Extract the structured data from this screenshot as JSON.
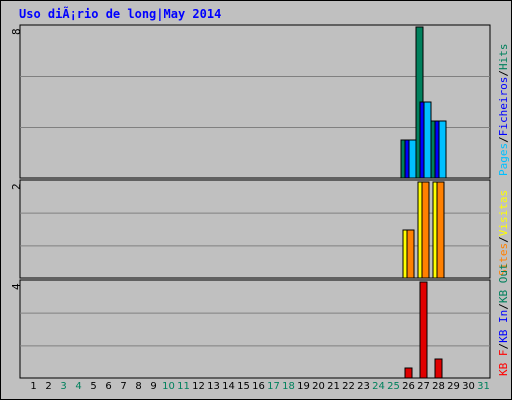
{
  "chart_data": {
    "type": "bar",
    "title": "Uso diÃ¡rio de long|May 2014",
    "x": [
      "1",
      "2",
      "3",
      "4",
      "5",
      "6",
      "7",
      "8",
      "9",
      "10",
      "11",
      "12",
      "13",
      "14",
      "15",
      "16",
      "17",
      "18",
      "19",
      "20",
      "21",
      "22",
      "23",
      "24",
      "25",
      "26",
      "27",
      "28",
      "29",
      "30",
      "31"
    ],
    "weekend_days": [
      "3",
      "4",
      "10",
      "11",
      "17",
      "18",
      "24",
      "25",
      "31"
    ],
    "panels": [
      {
        "id": "hits",
        "ymax_label": "8",
        "ylim": [
          0,
          8
        ],
        "legend": [
          "Hits",
          "Ficheiros",
          "Pages"
        ],
        "legend_colors": [
          "#00805c",
          "#0000ff",
          "#00c0ff"
        ],
        "series": [
          {
            "name": "Hits",
            "color": "#00805c",
            "values": [
              0,
              0,
              0,
              0,
              0,
              0,
              0,
              0,
              0,
              0,
              0,
              0,
              0,
              0,
              0,
              0,
              0,
              0,
              0,
              0,
              0,
              0,
              0,
              0,
              0,
              2,
              8,
              3,
              0,
              0,
              0
            ]
          },
          {
            "name": "Ficheiros",
            "color": "#0000ff",
            "values": [
              0,
              0,
              0,
              0,
              0,
              0,
              0,
              0,
              0,
              0,
              0,
              0,
              0,
              0,
              0,
              0,
              0,
              0,
              0,
              0,
              0,
              0,
              0,
              0,
              0,
              2,
              4,
              3,
              0,
              0,
              0
            ]
          },
          {
            "name": "Pages",
            "color": "#00c0ff",
            "values": [
              0,
              0,
              0,
              0,
              0,
              0,
              0,
              0,
              0,
              0,
              0,
              0,
              0,
              0,
              0,
              0,
              0,
              0,
              0,
              0,
              0,
              0,
              0,
              0,
              0,
              2,
              4,
              3,
              0,
              0,
              0
            ]
          }
        ]
      },
      {
        "id": "visits",
        "ymax_label": "2",
        "ylim": [
          0,
          2
        ],
        "legend": [
          "Visitas",
          "Sites"
        ],
        "legend_colors": [
          "#ffff00",
          "#ff8000"
        ],
        "series": [
          {
            "name": "Visitas",
            "color": "#ffff00",
            "values": [
              0,
              0,
              0,
              0,
              0,
              0,
              0,
              0,
              0,
              0,
              0,
              0,
              0,
              0,
              0,
              0,
              0,
              0,
              0,
              0,
              0,
              0,
              0,
              0,
              0,
              1,
              2,
              2,
              0,
              0,
              0
            ]
          },
          {
            "name": "Sites",
            "color": "#ff8000",
            "values": [
              0,
              0,
              0,
              0,
              0,
              0,
              0,
              0,
              0,
              0,
              0,
              0,
              0,
              0,
              0,
              0,
              0,
              0,
              0,
              0,
              0,
              0,
              0,
              0,
              0,
              1,
              2,
              2,
              0,
              0,
              0
            ]
          }
        ]
      },
      {
        "id": "kbytes",
        "ymax_label": "4",
        "ylim": [
          0,
          4
        ],
        "legend": [
          "KB Out",
          "KB In",
          "KB F"
        ],
        "legend_colors": [
          "#00805c",
          "#0000ff",
          "#ff0000"
        ],
        "series": [
          {
            "name": "KB F",
            "color": "#e00000",
            "values": [
              0,
              0,
              0,
              0,
              0,
              0,
              0,
              0,
              0,
              0,
              0,
              0,
              0,
              0,
              0,
              0,
              0,
              0,
              0,
              0,
              0,
              0,
              0,
              0,
              0,
              0.4,
              4,
              0.8,
              0,
              0,
              0
            ]
          }
        ]
      }
    ]
  },
  "colors": {
    "background": "#c0c0c0",
    "plot_background": "#c0c0c0",
    "weekday_label": "#000000",
    "weekend_label": "#00805c",
    "title": "#0000ff"
  }
}
